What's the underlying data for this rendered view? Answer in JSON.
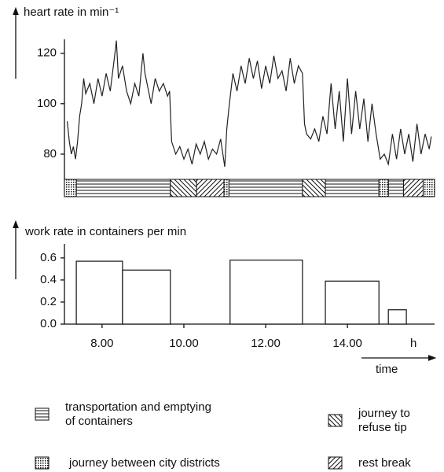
{
  "chart_data": [
    {
      "type": "line",
      "ylabel": "heart rate in min⁻¹",
      "xlim": [
        7.08,
        16.13
      ],
      "ylim": [
        70,
        128
      ],
      "yticks": [
        80,
        100,
        120
      ],
      "x": [
        7.15,
        7.2,
        7.25,
        7.3,
        7.35,
        7.4,
        7.45,
        7.5,
        7.55,
        7.6,
        7.7,
        7.8,
        7.9,
        8.0,
        8.1,
        8.2,
        8.3,
        8.35,
        8.4,
        8.5,
        8.6,
        8.7,
        8.8,
        8.9,
        9.0,
        9.05,
        9.1,
        9.2,
        9.3,
        9.4,
        9.5,
        9.6,
        9.65,
        9.7,
        9.8,
        9.9,
        10.0,
        10.1,
        10.2,
        10.3,
        10.4,
        10.5,
        10.6,
        10.7,
        10.8,
        10.9,
        11.0,
        11.05,
        11.1,
        11.2,
        11.3,
        11.4,
        11.5,
        11.6,
        11.7,
        11.8,
        11.9,
        12.0,
        12.1,
        12.2,
        12.3,
        12.4,
        12.5,
        12.6,
        12.7,
        12.8,
        12.9,
        12.95,
        13.0,
        13.1,
        13.2,
        13.3,
        13.4,
        13.5,
        13.6,
        13.7,
        13.8,
        13.9,
        14.0,
        14.1,
        14.2,
        14.3,
        14.4,
        14.5,
        14.6,
        14.7,
        14.8,
        14.9,
        15.0,
        15.1,
        15.2,
        15.3,
        15.4,
        15.5,
        15.6,
        15.7,
        15.8,
        15.9,
        16.0,
        16.05
      ],
      "series": [
        {
          "color": "#222222",
          "values": [
            93,
            85,
            80,
            83,
            78,
            85,
            95,
            100,
            110,
            104,
            108,
            100,
            110,
            103,
            112,
            105,
            118,
            125,
            110,
            115,
            105,
            100,
            108,
            103,
            120,
            112,
            108,
            100,
            110,
            105,
            108,
            103,
            105,
            85,
            80,
            83,
            78,
            82,
            76,
            84,
            80,
            85,
            78,
            82,
            80,
            86,
            75,
            90,
            98,
            112,
            105,
            115,
            108,
            118,
            110,
            117,
            106,
            115,
            108,
            119,
            110,
            113,
            105,
            118,
            108,
            115,
            112,
            92,
            88,
            86,
            90,
            85,
            95,
            88,
            108,
            90,
            105,
            85,
            110,
            88,
            105,
            90,
            102,
            85,
            100,
            88,
            78,
            80,
            76,
            88,
            78,
            90,
            80,
            88,
            77,
            92,
            80,
            88,
            82,
            87
          ]
        }
      ]
    },
    {
      "type": "interval-bar",
      "ylabel": "work rate in containers per min",
      "xlabel": "time",
      "xunit": "h",
      "xlim": [
        7.08,
        16.13
      ],
      "ylim": [
        0,
        0.87
      ],
      "yticks": [
        {
          "value": 0,
          "label": "0.0"
        },
        0.2,
        0.4,
        0.6
      ],
      "xticks": [
        {
          "value": 8,
          "label": "8.00"
        },
        {
          "value": 10,
          "label": "10.00"
        },
        {
          "value": 12,
          "label": "12.00"
        },
        {
          "value": 14,
          "label": "14.00"
        }
      ],
      "intervals": [
        [
          7.37,
          8.5
        ],
        [
          8.5,
          9.67
        ],
        [
          11.13,
          12.9
        ],
        [
          13.46,
          14.77
        ],
        [
          15.0,
          15.44
        ]
      ],
      "values": [
        0.57,
        0.49,
        0.58,
        0.39,
        0.13
      ],
      "color": "#ffffff"
    }
  ],
  "activities": {
    "items": [
      {
        "label": [
          "transportation and emptying",
          "of containers"
        ],
        "pattern": "horizontal",
        "intervals": [
          [
            7.37,
            9.67
          ],
          [
            11.1,
            12.9
          ],
          [
            13.46,
            14.77
          ],
          [
            15.0,
            15.37
          ]
        ]
      },
      {
        "label": [
          "journey between city districts"
        ],
        "pattern": "dotted",
        "intervals": [
          [
            7.08,
            7.37
          ],
          [
            10.98,
            11.1
          ],
          [
            14.77,
            15.0
          ],
          [
            15.85,
            16.13
          ]
        ]
      },
      {
        "label": [
          "journey to",
          "refuse tip"
        ],
        "pattern": "backslash",
        "intervals": [
          [
            9.67,
            10.31
          ],
          [
            12.9,
            13.46
          ]
        ]
      },
      {
        "label": [
          "rest break"
        ],
        "pattern": "slash",
        "intervals": [
          [
            10.31,
            10.98
          ],
          [
            15.37,
            15.85
          ]
        ]
      }
    ]
  }
}
